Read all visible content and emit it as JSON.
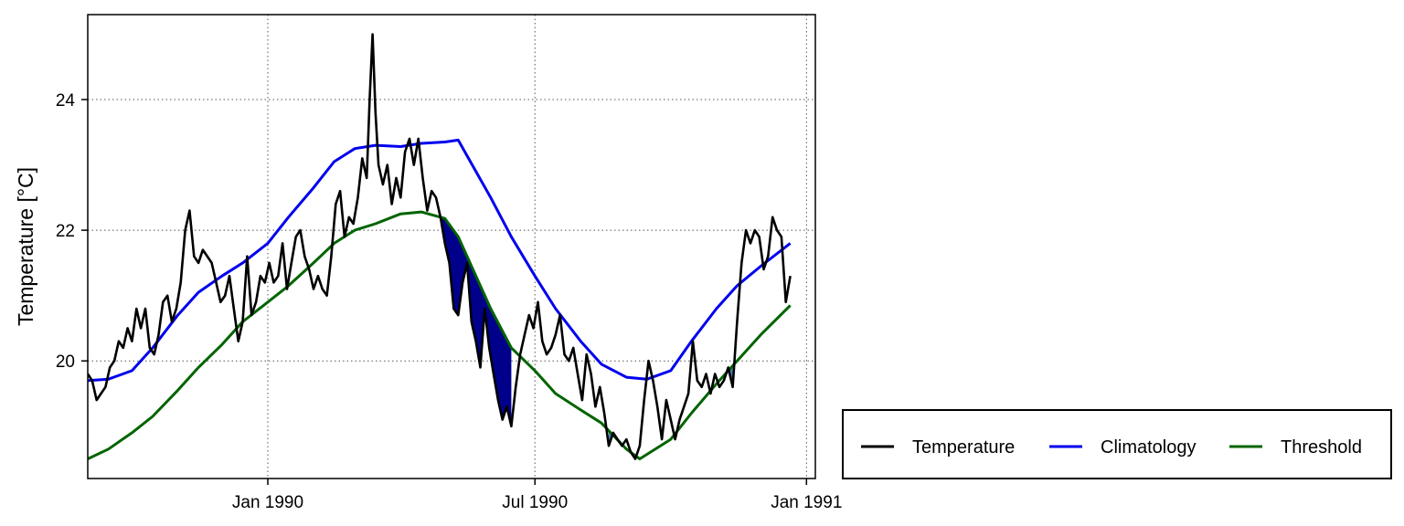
{
  "chart_data": {
    "type": "line",
    "title": "",
    "xlabel": "",
    "ylabel": "Temperature [°C]",
    "xlim": [
      "1989-09-01",
      "1991-01-07"
    ],
    "ylim": [
      18.2,
      25.3
    ],
    "grid": true,
    "legend_position": "bottom-right",
    "x_ticks": [
      {
        "date": "1990-01-01",
        "label": "Jan 1990"
      },
      {
        "date": "1990-07-01",
        "label": "Jul 1990"
      },
      {
        "date": "1991-01-01",
        "label": "Jan 1991"
      }
    ],
    "y_ticks": [
      {
        "value": 20,
        "label": "20"
      },
      {
        "value": 22,
        "label": "22"
      },
      {
        "value": 24,
        "label": "24"
      }
    ],
    "series": [
      {
        "name": "Temperature",
        "color": "#000000",
        "points": [
          [
            "1989-09-01",
            19.8
          ],
          [
            "1989-09-04",
            19.7
          ],
          [
            "1989-09-07",
            19.4
          ],
          [
            "1989-09-10",
            19.5
          ],
          [
            "1989-09-13",
            19.6
          ],
          [
            "1989-09-16",
            19.9
          ],
          [
            "1989-09-19",
            20.0
          ],
          [
            "1989-09-22",
            20.3
          ],
          [
            "1989-09-25",
            20.2
          ],
          [
            "1989-09-28",
            20.5
          ],
          [
            "1989-10-01",
            20.3
          ],
          [
            "1989-10-04",
            20.8
          ],
          [
            "1989-10-07",
            20.5
          ],
          [
            "1989-10-10",
            20.8
          ],
          [
            "1989-10-13",
            20.2
          ],
          [
            "1989-10-16",
            20.1
          ],
          [
            "1989-10-19",
            20.4
          ],
          [
            "1989-10-22",
            20.9
          ],
          [
            "1989-10-25",
            21.0
          ],
          [
            "1989-10-28",
            20.6
          ],
          [
            "1989-10-31",
            20.8
          ],
          [
            "1989-11-03",
            21.2
          ],
          [
            "1989-11-06",
            22.0
          ],
          [
            "1989-11-09",
            22.3
          ],
          [
            "1989-11-12",
            21.6
          ],
          [
            "1989-11-15",
            21.5
          ],
          [
            "1989-11-18",
            21.7
          ],
          [
            "1989-11-21",
            21.6
          ],
          [
            "1989-11-24",
            21.5
          ],
          [
            "1989-11-27",
            21.2
          ],
          [
            "1989-11-30",
            20.9
          ],
          [
            "1989-12-03",
            21.0
          ],
          [
            "1989-12-06",
            21.3
          ],
          [
            "1989-12-09",
            20.8
          ],
          [
            "1989-12-12",
            20.3
          ],
          [
            "1989-12-15",
            20.6
          ],
          [
            "1989-12-18",
            21.6
          ],
          [
            "1989-12-21",
            20.7
          ],
          [
            "1989-12-24",
            20.9
          ],
          [
            "1989-12-27",
            21.3
          ],
          [
            "1989-12-30",
            21.2
          ],
          [
            "1990-01-02",
            21.5
          ],
          [
            "1990-01-05",
            21.2
          ],
          [
            "1990-01-08",
            21.3
          ],
          [
            "1990-01-11",
            21.8
          ],
          [
            "1990-01-14",
            21.1
          ],
          [
            "1990-01-17",
            21.5
          ],
          [
            "1990-01-20",
            21.9
          ],
          [
            "1990-01-23",
            22.0
          ],
          [
            "1990-01-26",
            21.6
          ],
          [
            "1990-01-29",
            21.4
          ],
          [
            "1990-02-01",
            21.1
          ],
          [
            "1990-02-04",
            21.3
          ],
          [
            "1990-02-07",
            21.1
          ],
          [
            "1990-02-10",
            21.0
          ],
          [
            "1990-02-13",
            21.6
          ],
          [
            "1990-02-16",
            22.4
          ],
          [
            "1990-02-19",
            22.6
          ],
          [
            "1990-02-22",
            21.9
          ],
          [
            "1990-02-25",
            22.2
          ],
          [
            "1990-02-28",
            22.1
          ],
          [
            "1990-03-03",
            22.5
          ],
          [
            "1990-03-06",
            23.1
          ],
          [
            "1990-03-09",
            22.8
          ],
          [
            "1990-03-11",
            24.0
          ],
          [
            "1990-03-13",
            25.0
          ],
          [
            "1990-03-15",
            23.8
          ],
          [
            "1990-03-17",
            23.0
          ],
          [
            "1990-03-20",
            22.7
          ],
          [
            "1990-03-23",
            23.0
          ],
          [
            "1990-03-26",
            22.4
          ],
          [
            "1990-03-29",
            22.8
          ],
          [
            "1990-04-01",
            22.5
          ],
          [
            "1990-04-04",
            23.2
          ],
          [
            "1990-04-07",
            23.4
          ],
          [
            "1990-04-10",
            23.0
          ],
          [
            "1990-04-13",
            23.4
          ],
          [
            "1990-04-16",
            22.8
          ],
          [
            "1990-04-19",
            22.3
          ],
          [
            "1990-04-22",
            22.6
          ],
          [
            "1990-04-25",
            22.5
          ],
          [
            "1990-04-28",
            22.2
          ],
          [
            "1990-05-01",
            21.8
          ],
          [
            "1990-05-04",
            21.5
          ],
          [
            "1990-05-07",
            20.8
          ],
          [
            "1990-05-10",
            20.7
          ],
          [
            "1990-05-13",
            21.2
          ],
          [
            "1990-05-16",
            21.5
          ],
          [
            "1990-05-19",
            20.6
          ],
          [
            "1990-05-22",
            20.3
          ],
          [
            "1990-05-25",
            19.9
          ],
          [
            "1990-05-28",
            20.8
          ],
          [
            "1990-05-31",
            20.2
          ],
          [
            "1990-06-03",
            19.8
          ],
          [
            "1990-06-06",
            19.4
          ],
          [
            "1990-06-09",
            19.1
          ],
          [
            "1990-06-12",
            19.3
          ],
          [
            "1990-06-15",
            19.0
          ],
          [
            "1990-06-18",
            19.6
          ],
          [
            "1990-06-21",
            20.1
          ],
          [
            "1990-06-24",
            20.4
          ],
          [
            "1990-06-27",
            20.7
          ],
          [
            "1990-06-30",
            20.5
          ],
          [
            "1990-07-03",
            20.9
          ],
          [
            "1990-07-06",
            20.3
          ],
          [
            "1990-07-09",
            20.1
          ],
          [
            "1990-07-12",
            20.2
          ],
          [
            "1990-07-15",
            20.4
          ],
          [
            "1990-07-18",
            20.7
          ],
          [
            "1990-07-21",
            20.1
          ],
          [
            "1990-07-24",
            20.0
          ],
          [
            "1990-07-27",
            20.2
          ],
          [
            "1990-07-30",
            19.8
          ],
          [
            "1990-08-02",
            19.4
          ],
          [
            "1990-08-05",
            20.1
          ],
          [
            "1990-08-08",
            19.8
          ],
          [
            "1990-08-11",
            19.3
          ],
          [
            "1990-08-14",
            19.6
          ],
          [
            "1990-08-17",
            19.2
          ],
          [
            "1990-08-20",
            18.7
          ],
          [
            "1990-08-23",
            18.9
          ],
          [
            "1990-08-26",
            18.8
          ],
          [
            "1990-08-29",
            18.7
          ],
          [
            "1990-09-01",
            18.8
          ],
          [
            "1990-09-04",
            18.6
          ],
          [
            "1990-09-07",
            18.5
          ],
          [
            "1990-09-10",
            18.7
          ],
          [
            "1990-09-13",
            19.4
          ],
          [
            "1990-09-16",
            20.0
          ],
          [
            "1990-09-19",
            19.7
          ],
          [
            "1990-09-22",
            19.3
          ],
          [
            "1990-09-25",
            18.8
          ],
          [
            "1990-09-28",
            19.4
          ],
          [
            "1990-10-01",
            19.1
          ],
          [
            "1990-10-04",
            18.8
          ],
          [
            "1990-10-07",
            19.1
          ],
          [
            "1990-10-10",
            19.3
          ],
          [
            "1990-10-13",
            19.5
          ],
          [
            "1990-10-16",
            20.3
          ],
          [
            "1990-10-19",
            19.7
          ],
          [
            "1990-10-22",
            19.6
          ],
          [
            "1990-10-25",
            19.8
          ],
          [
            "1990-10-28",
            19.5
          ],
          [
            "1990-10-31",
            19.8
          ],
          [
            "1990-11-03",
            19.6
          ],
          [
            "1990-11-06",
            19.7
          ],
          [
            "1990-11-09",
            19.9
          ],
          [
            "1990-11-12",
            19.6
          ],
          [
            "1990-11-15",
            20.6
          ],
          [
            "1990-11-18",
            21.5
          ],
          [
            "1990-11-21",
            22.0
          ],
          [
            "1990-11-24",
            21.8
          ],
          [
            "1990-11-27",
            22.0
          ],
          [
            "1990-11-30",
            21.9
          ],
          [
            "1990-12-03",
            21.4
          ],
          [
            "1990-12-06",
            21.6
          ],
          [
            "1990-12-09",
            22.2
          ],
          [
            "1990-12-12",
            22.0
          ],
          [
            "1990-12-15",
            21.9
          ],
          [
            "1990-12-18",
            20.9
          ],
          [
            "1990-12-21",
            21.3
          ]
        ]
      },
      {
        "name": "Climatology",
        "color": "#0000ee",
        "points": [
          [
            "1989-09-01",
            19.7
          ],
          [
            "1989-09-15",
            19.72
          ],
          [
            "1989-10-01",
            19.85
          ],
          [
            "1989-10-15",
            20.2
          ],
          [
            "1989-11-01",
            20.7
          ],
          [
            "1989-11-15",
            21.05
          ],
          [
            "1989-12-01",
            21.3
          ],
          [
            "1989-12-15",
            21.5
          ],
          [
            "1990-01-01",
            21.8
          ],
          [
            "1990-01-15",
            22.2
          ],
          [
            "1990-02-01",
            22.65
          ],
          [
            "1990-02-15",
            23.05
          ],
          [
            "1990-03-01",
            23.25
          ],
          [
            "1990-03-15",
            23.3
          ],
          [
            "1990-04-01",
            23.28
          ],
          [
            "1990-04-15",
            23.33
          ],
          [
            "1990-05-01",
            23.35
          ],
          [
            "1990-05-10",
            23.38
          ],
          [
            "1990-06-01",
            22.5
          ],
          [
            "1990-06-15",
            21.9
          ],
          [
            "1990-07-01",
            21.3
          ],
          [
            "1990-07-15",
            20.8
          ],
          [
            "1990-08-01",
            20.3
          ],
          [
            "1990-08-15",
            19.95
          ],
          [
            "1990-09-01",
            19.75
          ],
          [
            "1990-09-15",
            19.72
          ],
          [
            "1990-10-01",
            19.85
          ],
          [
            "1990-10-15",
            20.3
          ],
          [
            "1990-11-01",
            20.8
          ],
          [
            "1990-11-15",
            21.15
          ],
          [
            "1990-12-01",
            21.45
          ],
          [
            "1990-12-21",
            21.8
          ]
        ]
      },
      {
        "name": "Threshold",
        "color": "#006400",
        "points": [
          [
            "1989-09-01",
            18.5
          ],
          [
            "1989-09-15",
            18.65
          ],
          [
            "1989-10-01",
            18.9
          ],
          [
            "1989-10-15",
            19.15
          ],
          [
            "1989-11-01",
            19.55
          ],
          [
            "1989-11-15",
            19.9
          ],
          [
            "1989-12-01",
            20.25
          ],
          [
            "1989-12-15",
            20.6
          ],
          [
            "1990-01-01",
            20.9
          ],
          [
            "1990-01-15",
            21.15
          ],
          [
            "1990-02-01",
            21.5
          ],
          [
            "1990-02-15",
            21.8
          ],
          [
            "1990-03-01",
            22.0
          ],
          [
            "1990-03-15",
            22.1
          ],
          [
            "1990-04-01",
            22.25
          ],
          [
            "1990-04-15",
            22.28
          ],
          [
            "1990-05-01",
            22.18
          ],
          [
            "1990-05-10",
            21.9
          ],
          [
            "1990-06-01",
            20.8
          ],
          [
            "1990-06-15",
            20.2
          ],
          [
            "1990-07-01",
            19.85
          ],
          [
            "1990-07-15",
            19.5
          ],
          [
            "1990-08-01",
            19.25
          ],
          [
            "1990-08-15",
            19.05
          ],
          [
            "1990-09-01",
            18.65
          ],
          [
            "1990-09-10",
            18.5
          ],
          [
            "1990-10-01",
            18.8
          ],
          [
            "1990-10-15",
            19.2
          ],
          [
            "1990-11-01",
            19.65
          ],
          [
            "1990-11-15",
            20.0
          ],
          [
            "1990-12-01",
            20.4
          ],
          [
            "1990-12-21",
            20.85
          ]
        ]
      }
    ],
    "shading": [
      {
        "type": "major",
        "color": "#00008b",
        "start": "1990-04-22",
        "end": "1990-06-15"
      },
      {
        "type": "minor",
        "color": "#4a7fbf",
        "start": "1990-08-20",
        "end": "1990-09-01"
      },
      {
        "type": "minor",
        "color": "#4a7fbf",
        "start": "1990-11-06",
        "end": "1990-11-12"
      }
    ]
  }
}
